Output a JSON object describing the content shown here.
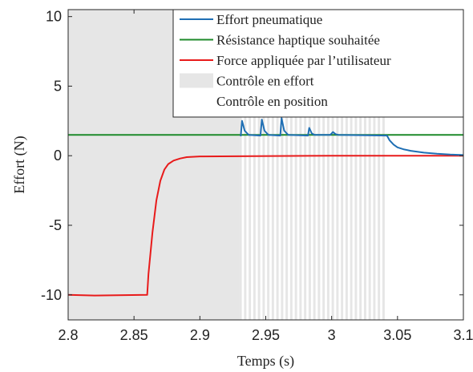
{
  "chart_data": {
    "type": "line",
    "xlabel": "Temps (s)",
    "ylabel": "Effort (N)",
    "xlim": [
      2.8,
      3.1
    ],
    "ylim": [
      -11.8,
      10.5
    ],
    "xticks": [
      "2.8",
      "2.85",
      "2.9",
      "2.95",
      "3",
      "3.05",
      "3.1"
    ],
    "yticks": [
      "-10",
      "-5",
      "0",
      "5",
      "10"
    ],
    "grid": false,
    "legend_position": "top-right",
    "legend": [
      {
        "label": "Effort pneumatique",
        "kind": "line",
        "color": "#1f6fb4"
      },
      {
        "label": "Résistance haptique souhaitée",
        "kind": "line",
        "color": "#1e8a2a"
      },
      {
        "label": "Force appliquée par l’utilisateur",
        "kind": "line",
        "color": "#e81b1b"
      },
      {
        "label": "Contrôle en effort",
        "kind": "patch",
        "color": "#e6e6e6"
      },
      {
        "label": "Contrôle en position",
        "kind": "patch",
        "color": "#ffffff"
      }
    ],
    "regions": {
      "effort_solid": [
        2.8,
        2.93
      ],
      "switching_zone": [
        2.93,
        3.042
      ],
      "effort_color": "#e6e6e6"
    },
    "series": [
      {
        "name": "Résistance haptique souhaitée",
        "color": "#1e8a2a",
        "x": [
          2.8,
          2.9,
          2.93,
          3.0,
          3.1
        ],
        "y": [
          1.5,
          1.5,
          1.5,
          1.5,
          1.5
        ]
      },
      {
        "name": "Force appliquée par l’utilisateur",
        "color": "#e81b1b",
        "x": [
          2.8,
          2.82,
          2.86,
          2.861,
          2.864,
          2.867,
          2.87,
          2.873,
          2.876,
          2.88,
          2.885,
          2.89,
          2.9,
          3.0,
          3.1
        ],
        "y": [
          -10.0,
          -10.05,
          -10.0,
          -8.5,
          -5.5,
          -3.2,
          -1.8,
          -1.0,
          -0.6,
          -0.35,
          -0.2,
          -0.1,
          -0.05,
          0.0,
          0.0
        ]
      },
      {
        "name": "Effort pneumatique",
        "color": "#1f6fb4",
        "x": [
          2.931,
          2.932,
          2.934,
          2.936,
          2.937,
          2.946,
          2.947,
          2.949,
          2.951,
          2.952,
          2.961,
          2.962,
          2.964,
          2.966,
          2.967,
          2.982,
          2.983,
          2.985,
          2.987,
          2.999,
          3.001,
          3.003,
          3.005,
          3.042,
          3.044,
          3.047,
          3.05,
          3.055,
          3.06,
          3.07,
          3.08,
          3.09,
          3.1
        ],
        "y": [
          1.4,
          2.5,
          1.8,
          1.6,
          1.5,
          1.45,
          2.6,
          1.8,
          1.6,
          1.5,
          1.45,
          2.7,
          1.8,
          1.6,
          1.5,
          1.45,
          2.0,
          1.6,
          1.5,
          1.5,
          1.7,
          1.55,
          1.5,
          1.45,
          1.1,
          0.8,
          0.6,
          0.45,
          0.35,
          0.22,
          0.14,
          0.08,
          0.05
        ]
      }
    ]
  }
}
